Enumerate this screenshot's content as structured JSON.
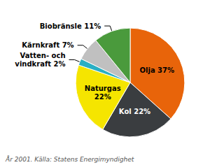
{
  "chart_data": {
    "type": "pie",
    "categories": [
      "Olja 37%",
      "Kol 22%",
      "Naturgas\n22%",
      "Vatten- och\nvindkraft 2%",
      "Kärnkraft 7%",
      "Biobränsle 11%"
    ],
    "values": [
      37,
      22,
      22,
      2,
      7,
      11
    ],
    "colors": [
      "#E8640A",
      "#3A3D40",
      "#F5E500",
      "#2AAFC4",
      "#C0C0C0",
      "#4A9A3C"
    ],
    "data_labels": true,
    "annotations": [
      "År 2001. Källa: Statens Energimyndighet"
    ]
  }
}
